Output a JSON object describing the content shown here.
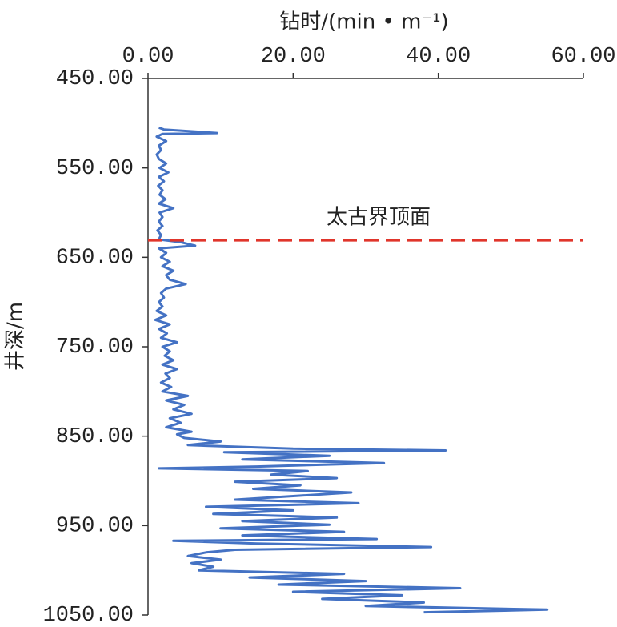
{
  "chart_data": {
    "type": "line",
    "x_label": "钻时/(min • m⁻¹)",
    "y_label": "井深/m",
    "annotation": "太古界顶面",
    "reference_depth": 631,
    "reference_color": "#e0352b",
    "color": "#4472c4",
    "xlim": [
      0,
      60
    ],
    "xticks": [
      {
        "value": 0,
        "label": "0.00"
      },
      {
        "value": 20,
        "label": "20.00"
      },
      {
        "value": 40,
        "label": "40.00"
      },
      {
        "value": 60,
        "label": "60.00"
      }
    ],
    "ylim": [
      450,
      1050
    ],
    "yticks": [
      {
        "value": 450,
        "label": "450.00"
      },
      {
        "value": 550,
        "label": "550.00"
      },
      {
        "value": 650,
        "label": "650.00"
      },
      {
        "value": 750,
        "label": "750.00"
      },
      {
        "value": 850,
        "label": "850.00"
      },
      {
        "value": 950,
        "label": "950.00"
      },
      {
        "value": 1050,
        "label": "1050.00"
      }
    ],
    "y_inverted": true,
    "depth": [
      505,
      507,
      511,
      512,
      515,
      520,
      525,
      530,
      535,
      540,
      545,
      550,
      555,
      560,
      565,
      570,
      575,
      580,
      585,
      590,
      595,
      600,
      605,
      610,
      615,
      620,
      625,
      630,
      633,
      637,
      640,
      645,
      650,
      655,
      660,
      665,
      670,
      675,
      680,
      685,
      690,
      695,
      700,
      705,
      710,
      715,
      720,
      725,
      730,
      735,
      740,
      745,
      750,
      755,
      760,
      765,
      770,
      775,
      780,
      785,
      790,
      795,
      800,
      805,
      810,
      815,
      820,
      825,
      830,
      835,
      840,
      845,
      848,
      852,
      856,
      860,
      864,
      866,
      868,
      872,
      876,
      880,
      884,
      886,
      889,
      893,
      897,
      901,
      905,
      909,
      913,
      917,
      921,
      925,
      929,
      933,
      937,
      941,
      945,
      949,
      953,
      957,
      961,
      965,
      967,
      970,
      974,
      977,
      980,
      984,
      988,
      992,
      996,
      1000,
      1004,
      1008,
      1012,
      1016,
      1020,
      1024,
      1028,
      1032,
      1036,
      1040,
      1044,
      1047
    ],
    "values": [
      1.5,
      2.2,
      9.5,
      2,
      1.2,
      2.5,
      1.5,
      1.8,
      1.2,
      1.5,
      2.5,
      1.6,
      2.8,
      1.5,
      2.2,
      1.4,
      2.0,
      1.6,
      2.4,
      1.5,
      3.5,
      1.6,
      2.0,
      1.5,
      2.0,
      1.3,
      1.8,
      1.5,
      4.5,
      6.5,
      1.5,
      2.5,
      1.8,
      3.0,
      2.0,
      3.5,
      2.5,
      3.0,
      5.2,
      2.5,
      1.8,
      2.2,
      1.5,
      2.0,
      1.2,
      2.5,
      1.0,
      3.0,
      1.5,
      2.6,
      1.8,
      4.0,
      2.0,
      3.0,
      2.3,
      3.5,
      2.0,
      4.0,
      2.4,
      3.0,
      1.8,
      3.2,
      2.0,
      5.5,
      2.5,
      5.0,
      3.5,
      6.0,
      3.0,
      4.5,
      2.5,
      6.0,
      4.0,
      5.0,
      10.0,
      5.5,
      20.0,
      41.0,
      10.5,
      25.0,
      13.0,
      32.5,
      15.0,
      1.5,
      22.0,
      17.0,
      26.0,
      12.0,
      21.0,
      14.5,
      28.0,
      20.0,
      12.0,
      29.0,
      8.0,
      20.0,
      9.0,
      26.0,
      13.0,
      25.0,
      10.0,
      27.0,
      13.0,
      31.5,
      3.5,
      15.0,
      39.0,
      12.0,
      8.0,
      5.5,
      10.0,
      6.0,
      9.0,
      7.0,
      27.0,
      14.0,
      30.0,
      18.0,
      43.0,
      20.0,
      35.0,
      24.0,
      38.0,
      30.0,
      55.0,
      38.0
    ]
  }
}
